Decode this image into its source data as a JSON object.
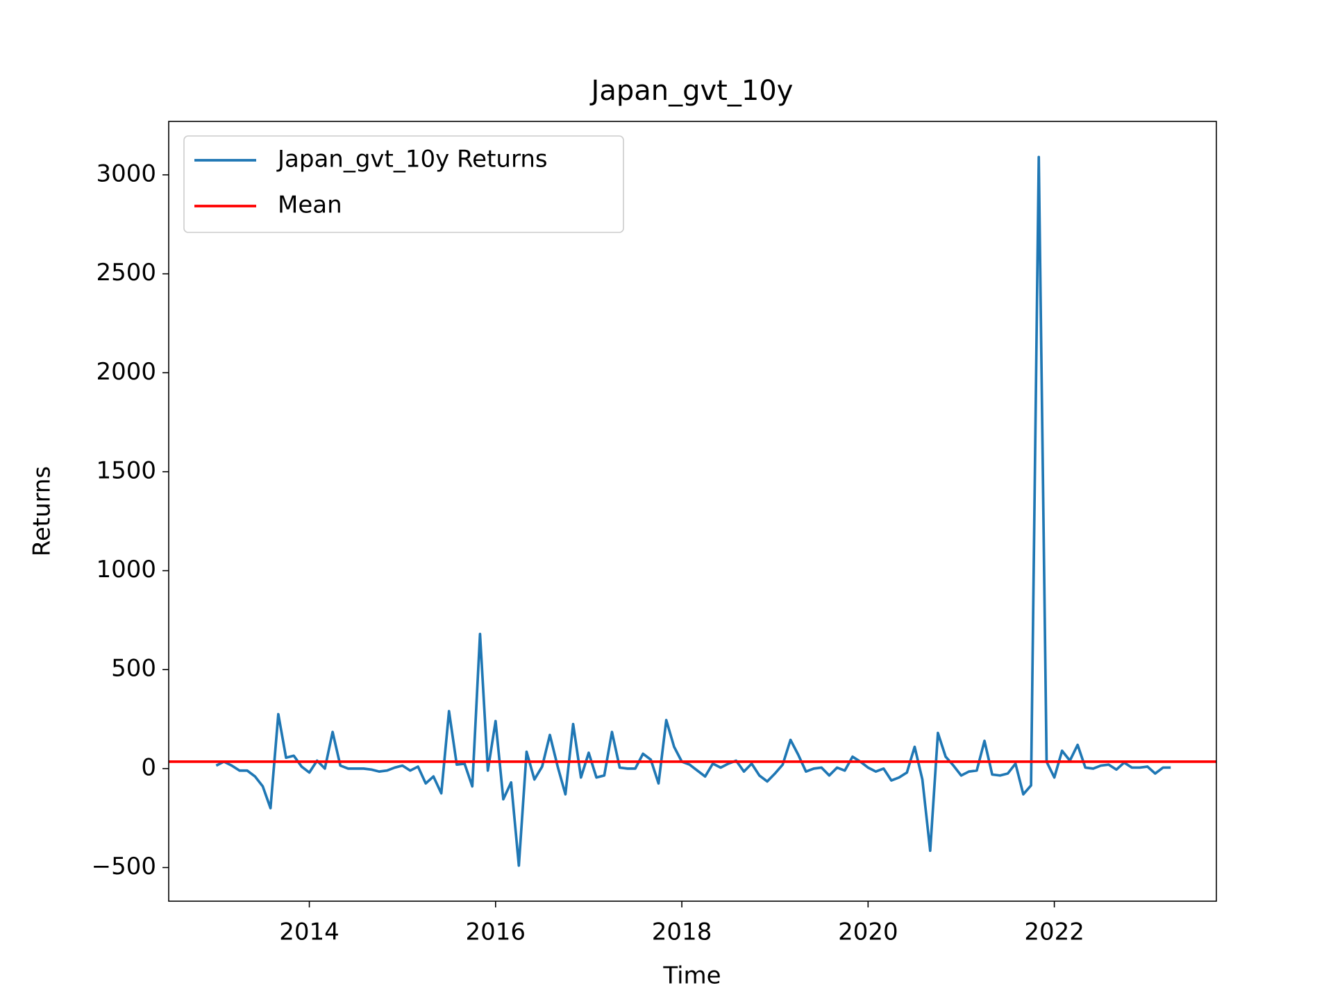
{
  "chart_data": {
    "type": "line",
    "title": "Japan_gvt_10y",
    "xlabel": "Time",
    "ylabel": "Returns",
    "x": [
      2013.0,
      2013.083,
      2013.167,
      2013.25,
      2013.333,
      2013.417,
      2013.5,
      2013.583,
      2013.667,
      2013.75,
      2013.833,
      2013.917,
      2014.0,
      2014.083,
      2014.167,
      2014.25,
      2014.333,
      2014.417,
      2014.5,
      2014.583,
      2014.667,
      2014.75,
      2014.833,
      2014.917,
      2015.0,
      2015.083,
      2015.167,
      2015.25,
      2015.333,
      2015.417,
      2015.5,
      2015.583,
      2015.667,
      2015.75,
      2015.833,
      2015.917,
      2016.0,
      2016.083,
      2016.167,
      2016.25,
      2016.333,
      2016.417,
      2016.5,
      2016.583,
      2016.667,
      2016.75,
      2016.833,
      2016.917,
      2017.0,
      2017.083,
      2017.167,
      2017.25,
      2017.333,
      2017.417,
      2017.5,
      2017.583,
      2017.667,
      2017.75,
      2017.833,
      2017.917,
      2018.0,
      2018.083,
      2018.167,
      2018.25,
      2018.333,
      2018.417,
      2018.5,
      2018.583,
      2018.667,
      2018.75,
      2018.833,
      2018.917,
      2019.0,
      2019.083,
      2019.167,
      2019.25,
      2019.333,
      2019.417,
      2019.5,
      2019.583,
      2019.667,
      2019.75,
      2019.833,
      2019.917,
      2020.0,
      2020.083,
      2020.167,
      2020.25,
      2020.333,
      2020.417,
      2020.5,
      2020.583,
      2020.667,
      2020.75,
      2020.833,
      2020.917,
      2021.0,
      2021.083,
      2021.167,
      2021.25,
      2021.333,
      2021.417,
      2021.5,
      2021.583,
      2021.667,
      2021.75,
      2021.833,
      2021.917,
      2022.0,
      2022.083,
      2022.167,
      2022.25,
      2022.333,
      2022.417,
      2022.5,
      2022.583,
      2022.667,
      2022.75,
      2022.833,
      2022.917,
      2023.0,
      2023.083,
      2023.167,
      2023.25
    ],
    "series": [
      {
        "name": "Japan_gvt_10y Returns",
        "color": "#1f77b4",
        "values": [
          15,
          35,
          15,
          -10,
          -10,
          -40,
          -90,
          -200,
          275,
          55,
          65,
          10,
          -20,
          40,
          0,
          185,
          15,
          0,
          0,
          0,
          -5,
          -15,
          -10,
          5,
          15,
          -10,
          10,
          -75,
          -40,
          -125,
          290,
          20,
          25,
          -90,
          680,
          -10,
          240,
          -155,
          -70,
          -490,
          85,
          -55,
          10,
          170,
          10,
          -130,
          225,
          -45,
          80,
          -45,
          -35,
          185,
          5,
          0,
          0,
          75,
          45,
          -75,
          245,
          110,
          35,
          20,
          -10,
          -40,
          25,
          5,
          25,
          40,
          -15,
          25,
          -35,
          -65,
          -25,
          20,
          145,
          70,
          -15,
          0,
          5,
          -35,
          5,
          -10,
          60,
          35,
          5,
          -15,
          0,
          -60,
          -45,
          -20,
          110,
          -55,
          -415,
          180,
          60,
          15,
          -35,
          -15,
          -10,
          140,
          -30,
          -35,
          -25,
          25,
          -130,
          -85,
          3090,
          35,
          -45,
          90,
          40,
          120,
          5,
          0,
          15,
          20,
          -5,
          30,
          5,
          5,
          10,
          -25,
          5,
          5
        ]
      },
      {
        "name": "Mean",
        "color": "#ff0000",
        "y": 35
      }
    ],
    "xlim": [
      2012.49,
      2023.74
    ],
    "xticks": [
      2014,
      2016,
      2018,
      2020,
      2022
    ],
    "ylim": [
      -670,
      3270
    ],
    "yticks": [
      {
        "value": -500,
        "label": "−500"
      },
      0,
      500,
      1000,
      1500,
      2000,
      2500,
      3000
    ],
    "legend": "upper left"
  }
}
